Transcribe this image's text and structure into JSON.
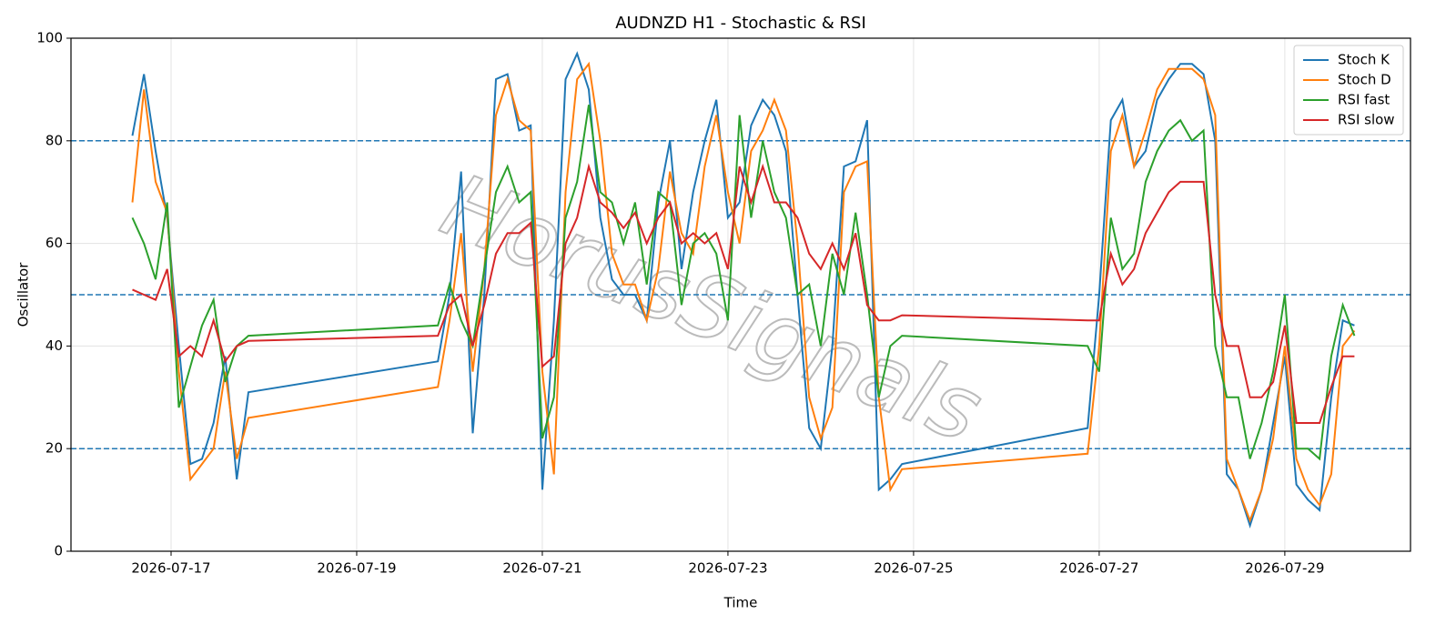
{
  "chart_data": {
    "type": "line",
    "title": "AUDNZD H1 - Stochastic & RSI",
    "xlabel": "Time",
    "ylabel": "Oscillator",
    "watermark": "HorusSignals",
    "x": [
      "2026-07-16T14:00",
      "2026-07-16T17:00",
      "2026-07-16T20:00",
      "2026-07-16T23:00",
      "2026-07-17T02:00",
      "2026-07-17T05:00",
      "2026-07-17T08:00",
      "2026-07-17T11:00",
      "2026-07-17T14:00",
      "2026-07-17T17:00",
      "2026-07-17T20:00",
      "2026-07-19T21:00",
      "2026-07-20T00:00",
      "2026-07-20T03:00",
      "2026-07-20T06:00",
      "2026-07-20T09:00",
      "2026-07-20T12:00",
      "2026-07-20T15:00",
      "2026-07-20T18:00",
      "2026-07-20T21:00",
      "2026-07-21T00:00",
      "2026-07-21T03:00",
      "2026-07-21T06:00",
      "2026-07-21T09:00",
      "2026-07-21T12:00",
      "2026-07-21T15:00",
      "2026-07-21T18:00",
      "2026-07-21T21:00",
      "2026-07-22T00:00",
      "2026-07-22T03:00",
      "2026-07-22T06:00",
      "2026-07-22T09:00",
      "2026-07-22T12:00",
      "2026-07-22T15:00",
      "2026-07-22T18:00",
      "2026-07-22T21:00",
      "2026-07-23T00:00",
      "2026-07-23T03:00",
      "2026-07-23T06:00",
      "2026-07-23T09:00",
      "2026-07-23T12:00",
      "2026-07-23T15:00",
      "2026-07-23T18:00",
      "2026-07-23T21:00",
      "2026-07-24T00:00",
      "2026-07-24T03:00",
      "2026-07-24T06:00",
      "2026-07-24T09:00",
      "2026-07-24T12:00",
      "2026-07-24T15:00",
      "2026-07-24T18:00",
      "2026-07-24T21:00",
      "2026-07-26T21:00",
      "2026-07-27T00:00",
      "2026-07-27T03:00",
      "2026-07-27T06:00",
      "2026-07-27T09:00",
      "2026-07-27T12:00",
      "2026-07-27T15:00",
      "2026-07-27T18:00",
      "2026-07-27T21:00",
      "2026-07-28T00:00",
      "2026-07-28T03:00",
      "2026-07-28T06:00",
      "2026-07-28T09:00",
      "2026-07-28T12:00",
      "2026-07-28T15:00",
      "2026-07-28T18:00",
      "2026-07-28T21:00",
      "2026-07-29T00:00",
      "2026-07-29T03:00",
      "2026-07-29T06:00",
      "2026-07-29T09:00",
      "2026-07-29T12:00",
      "2026-07-29T15:00",
      "2026-07-29T18:00"
    ],
    "series": [
      {
        "name": "Stoch K",
        "color": "#1f77b4",
        "values": [
          81,
          93,
          78,
          65,
          40,
          17,
          18,
          25,
          38,
          14,
          31,
          37,
          50,
          74,
          23,
          50,
          92,
          93,
          82,
          83,
          12,
          45,
          92,
          97,
          90,
          65,
          53,
          50,
          50,
          45,
          68,
          80,
          55,
          70,
          80,
          88,
          65,
          68,
          83,
          88,
          85,
          78,
          50,
          24,
          20,
          40,
          75,
          76,
          84,
          12,
          14,
          17,
          24,
          50,
          84,
          88,
          75,
          78,
          88,
          92,
          95,
          95,
          93,
          80,
          15,
          12,
          5,
          12,
          25,
          38,
          13,
          10,
          8,
          30,
          45,
          44
        ]
      },
      {
        "name": "Stoch D",
        "color": "#ff7f0e",
        "values": [
          68,
          90,
          72,
          66,
          35,
          14,
          17,
          20,
          35,
          18,
          26,
          32,
          45,
          62,
          35,
          55,
          85,
          92,
          84,
          82,
          35,
          15,
          70,
          92,
          95,
          80,
          58,
          52,
          52,
          45,
          55,
          74,
          62,
          58,
          75,
          85,
          70,
          60,
          78,
          82,
          88,
          82,
          60,
          30,
          22,
          28,
          70,
          75,
          76,
          30,
          12,
          16,
          19,
          40,
          78,
          85,
          75,
          82,
          90,
          94,
          94,
          94,
          92,
          85,
          18,
          12,
          6,
          12,
          22,
          40,
          18,
          12,
          9,
          15,
          40,
          43
        ]
      },
      {
        "name": "RSI fast",
        "color": "#2ca02c",
        "values": [
          65,
          60,
          53,
          68,
          28,
          36,
          44,
          49,
          33,
          40,
          42,
          44,
          52,
          45,
          40,
          55,
          70,
          75,
          68,
          70,
          22,
          30,
          65,
          72,
          87,
          70,
          68,
          60,
          68,
          52,
          70,
          68,
          48,
          60,
          62,
          58,
          45,
          85,
          65,
          80,
          70,
          65,
          50,
          52,
          40,
          58,
          50,
          66,
          50,
          30,
          40,
          42,
          40,
          35,
          65,
          55,
          58,
          72,
          78,
          82,
          84,
          80,
          82,
          40,
          30,
          30,
          18,
          25,
          35,
          50,
          20,
          20,
          18,
          38,
          48,
          42
        ]
      },
      {
        "name": "RSI slow",
        "color": "#d62728",
        "values": [
          51,
          50,
          49,
          55,
          38,
          40,
          38,
          45,
          37,
          40,
          41,
          42,
          48,
          50,
          40,
          48,
          58,
          62,
          62,
          64,
          36,
          38,
          60,
          65,
          75,
          68,
          66,
          63,
          66,
          60,
          65,
          68,
          60,
          62,
          60,
          62,
          55,
          75,
          68,
          75,
          68,
          68,
          65,
          58,
          55,
          60,
          55,
          62,
          48,
          45,
          45,
          46,
          45,
          45,
          58,
          52,
          55,
          62,
          66,
          70,
          72,
          72,
          72,
          50,
          40,
          40,
          30,
          30,
          33,
          44,
          25,
          25,
          25,
          32,
          38,
          38
        ]
      }
    ],
    "xlim": [
      "2026-07-15T22:07",
      "2026-07-30T08:30"
    ],
    "xticks": [
      "2026-07-17",
      "2026-07-19",
      "2026-07-21",
      "2026-07-23",
      "2026-07-25",
      "2026-07-27",
      "2026-07-29"
    ],
    "ylim": [
      0,
      100
    ],
    "yticks": [
      0,
      20,
      40,
      60,
      80,
      100
    ],
    "hlines": [
      20,
      50,
      80
    ],
    "hline_color": "#1f77b4",
    "grid": true,
    "legend": "upper right"
  }
}
